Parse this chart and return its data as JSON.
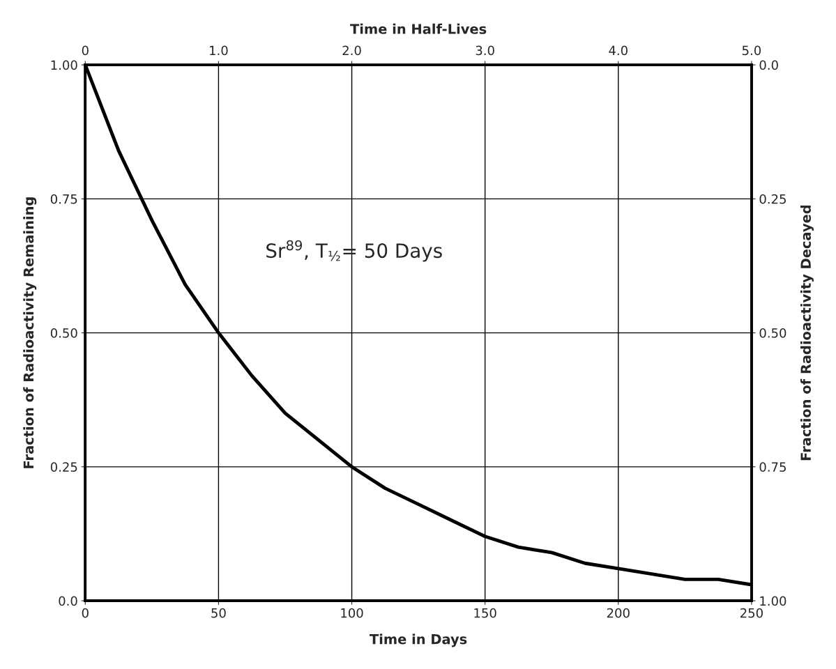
{
  "chart_data": {
    "type": "line",
    "xlabel": "Time in Days",
    "ylabel": "Fraction of Radioactivity Remaining",
    "y2label": "Fraction of Radioactivity Decayed",
    "x2label": "Time in Half-Lives",
    "x": [
      0,
      12.5,
      25,
      37.5,
      50,
      62.5,
      75,
      87.5,
      100,
      112.5,
      125,
      137.5,
      150,
      162.5,
      175,
      187.5,
      200,
      212.5,
      225,
      237.5,
      250
    ],
    "series": [
      {
        "color": "#000000",
        "values": [
          1.0,
          0.84,
          0.71,
          0.59,
          0.5,
          0.42,
          0.35,
          0.3,
          0.25,
          0.21,
          0.18,
          0.15,
          0.12,
          0.1,
          0.09,
          0.07,
          0.06,
          0.05,
          0.04,
          0.04,
          0.03
        ]
      }
    ],
    "xlim": [
      0,
      250
    ],
    "xticks": [
      0,
      50,
      100,
      150,
      200,
      250
    ],
    "ylim": [
      0,
      1
    ],
    "yticks": [
      {
        "value": 0,
        "label": "0.0"
      },
      0.25,
      {
        "value": 0.5,
        "label": "0.50"
      },
      0.75,
      {
        "value": 1,
        "label": "1.00"
      }
    ],
    "y2lim": [
      1,
      0
    ],
    "y2ticks": [
      {
        "value": 0,
        "label": "0.0"
      },
      0.25,
      {
        "value": 0.5,
        "label": "0.50"
      },
      0.75,
      {
        "value": 1,
        "label": "1.00"
      }
    ],
    "x2lim": [
      0,
      5
    ],
    "x2ticks": [
      0,
      {
        "value": 1,
        "label": "1.0"
      },
      {
        "value": 2,
        "label": "2.0"
      },
      {
        "value": 3,
        "label": "3.0"
      },
      {
        "value": 4,
        "label": "4.0"
      },
      {
        "value": 5,
        "label": "5.0"
      }
    ],
    "annotations": [
      "Sr$^{89}$, T$_{½}$= 50 Days"
    ],
    "grid": true,
    "marker": "none",
    "line_style": "solid"
  }
}
